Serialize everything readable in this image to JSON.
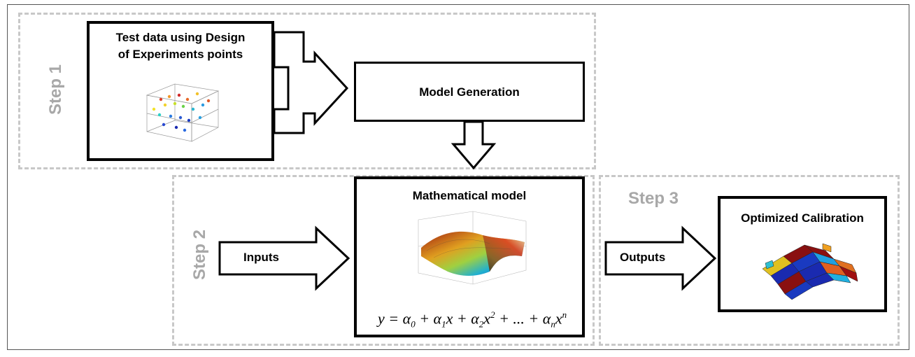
{
  "steps": {
    "step1": "Step 1",
    "step2": "Step 2",
    "step3": "Step 3"
  },
  "boxes": {
    "test_data": "Test data using Design of Experiments points",
    "test_data_line1": "Test data using Design",
    "test_data_line2": "of Experiments points",
    "model_generation": "Model Generation",
    "mathematical_model": "Mathematical model",
    "optimized_calibration": "Optimized Calibration"
  },
  "arrows": {
    "inputs": "Inputs",
    "outputs": "Outputs"
  },
  "equation": {
    "y": "y",
    "eq": " = ",
    "a": "α",
    "x": "x",
    "plus": " + ",
    "dots": " + ... + ",
    "sub0": "0",
    "sub1": "1",
    "sub2": "2",
    "subn": "n",
    "sup2": "2",
    "supn": "n"
  },
  "colors": {
    "region_border": "#c8c8c8",
    "step_text": "#a8a8a8",
    "box_border": "#000000"
  }
}
